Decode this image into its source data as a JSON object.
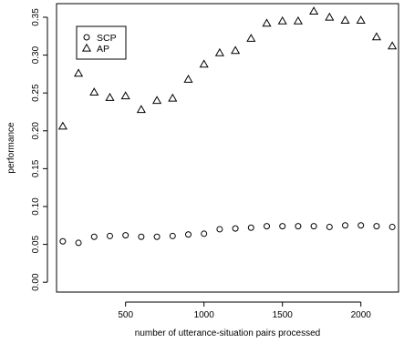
{
  "chart_data": {
    "type": "scatter",
    "xlabel": "number of utterance-situation pairs processed",
    "ylabel": "performance",
    "xlim": [
      60,
      2240
    ],
    "ylim": [
      -0.013,
      0.368
    ],
    "x_ticks": [
      500,
      1000,
      1500,
      2000
    ],
    "y_ticks": [
      0.0,
      0.05,
      0.1,
      0.15,
      0.2,
      0.25,
      0.3,
      0.35
    ],
    "y_tick_labels": [
      "0.00",
      "0.05",
      "0.10",
      "0.15",
      "0.20",
      "0.25",
      "0.30",
      "0.35"
    ],
    "legend_position": "top-left",
    "grid": false,
    "series": [
      {
        "name": "SCP",
        "marker": "circle",
        "x": [
          100,
          200,
          300,
          400,
          500,
          600,
          700,
          800,
          900,
          1000,
          1100,
          1200,
          1300,
          1400,
          1500,
          1600,
          1700,
          1800,
          1900,
          2000,
          2100,
          2200
        ],
        "y": [
          0.054,
          0.052,
          0.06,
          0.061,
          0.062,
          0.06,
          0.06,
          0.061,
          0.063,
          0.064,
          0.07,
          0.071,
          0.072,
          0.074,
          0.074,
          0.074,
          0.074,
          0.073,
          0.075,
          0.075,
          0.074,
          0.073
        ]
      },
      {
        "name": "AP",
        "marker": "triangle",
        "x": [
          100,
          200,
          300,
          400,
          500,
          600,
          700,
          800,
          900,
          1000,
          1100,
          1200,
          1300,
          1400,
          1500,
          1600,
          1700,
          1800,
          1900,
          2000,
          2100,
          2200
        ],
        "y": [
          0.206,
          0.276,
          0.251,
          0.244,
          0.246,
          0.228,
          0.24,
          0.243,
          0.268,
          0.288,
          0.303,
          0.306,
          0.322,
          0.342,
          0.345,
          0.345,
          0.358,
          0.35,
          0.346,
          0.346,
          0.324,
          0.312
        ]
      }
    ]
  }
}
